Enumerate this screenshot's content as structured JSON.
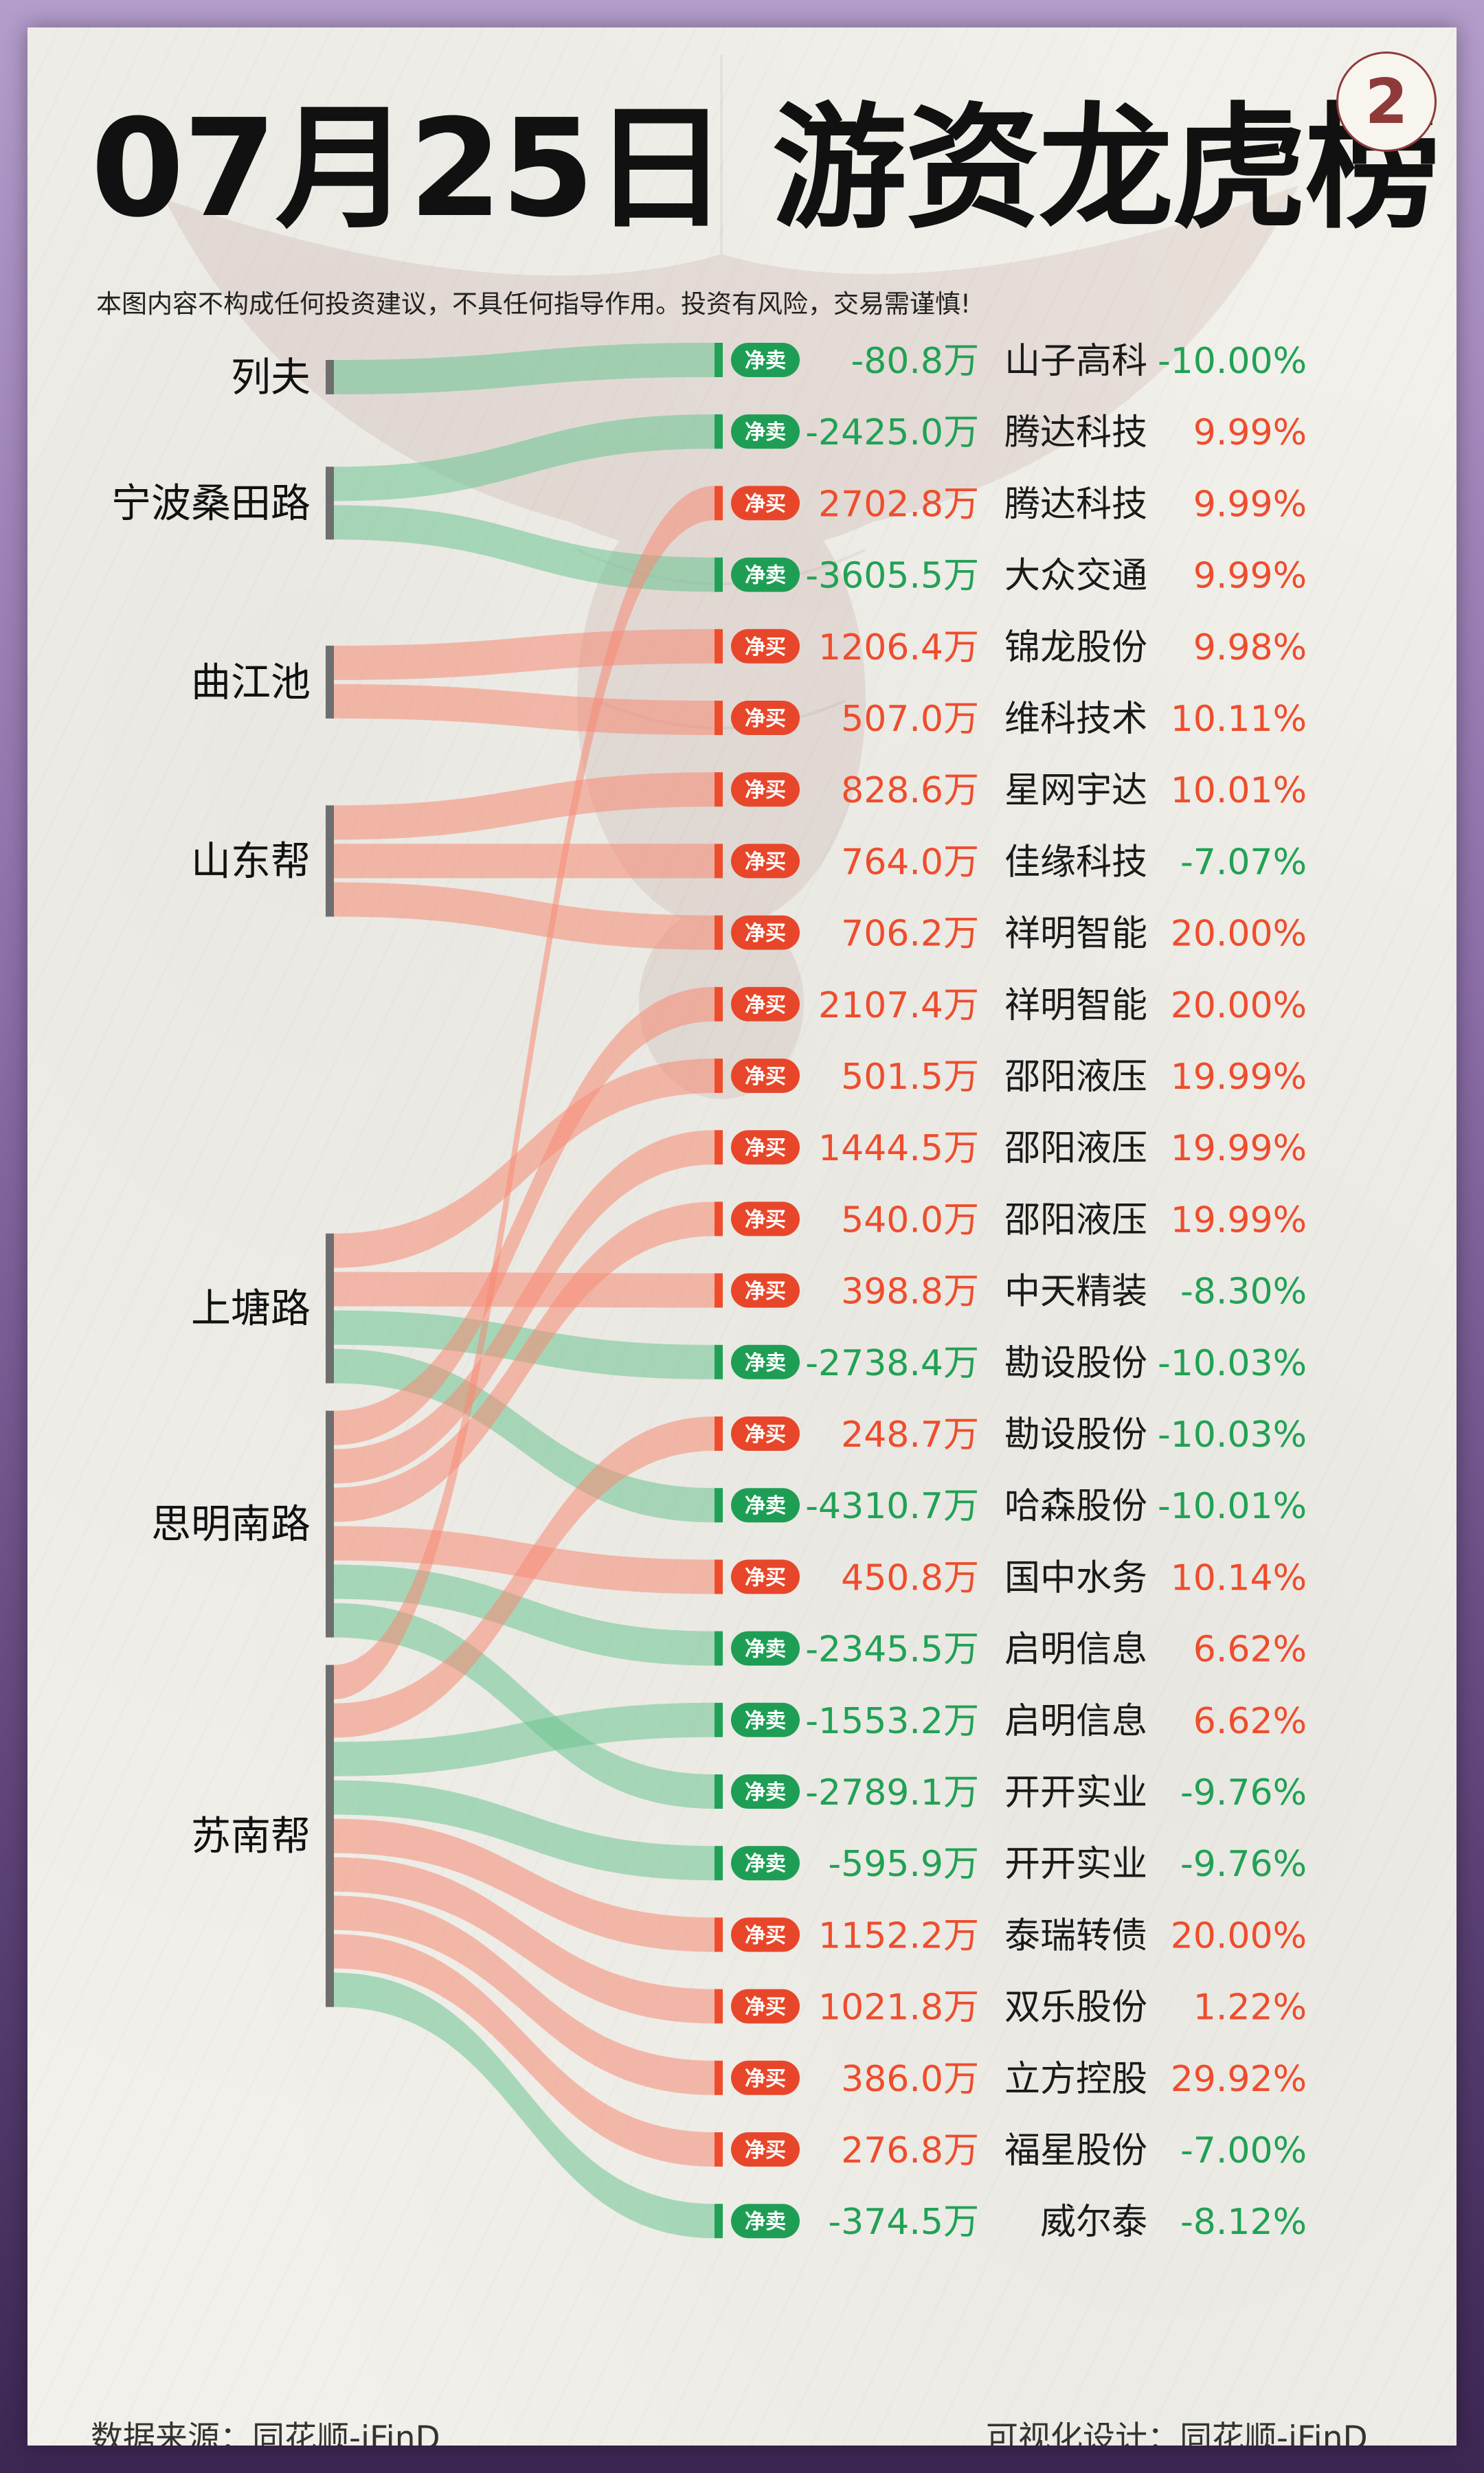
{
  "header": {
    "title": "07月25日 游资龙虎榜",
    "badge": "2",
    "disclaimer": "本图内容不构成任何投资建议，不具任何指导作用。投资有风险，交易需谨慎!"
  },
  "footer": {
    "source": "数据来源：同花顺-iFinD",
    "design": "可视化设计：同花顺-iFinD"
  },
  "colors": {
    "buy": "#ee4d2d",
    "sell": "#21a155",
    "buy_flow": "#f58a74",
    "sell_flow": "#6cc492",
    "label": "#111111"
  },
  "icons": {
    "buy_tag": "red-pill-badge",
    "sell_tag": "green-pill-badge"
  },
  "chart_data": {
    "type": "sankey",
    "unit": "万",
    "action_labels": {
      "buy": "净买",
      "sell": "净卖"
    },
    "sources": [
      "列夫",
      "宁波桑田路",
      "曲江池",
      "山东帮",
      "上塘路",
      "思明南路",
      "苏南帮"
    ],
    "flows": [
      {
        "source": "列夫",
        "action": "sell",
        "amount": "-80.8万",
        "value": -80.8,
        "stock": "山子高科",
        "change": "-10.00%"
      },
      {
        "source": "宁波桑田路",
        "action": "sell",
        "amount": "-2425.0万",
        "value": -2425.0,
        "stock": "腾达科技",
        "change": "9.99%"
      },
      {
        "source": "苏南帮",
        "action": "buy",
        "amount": "2702.8万",
        "value": 2702.8,
        "stock": "腾达科技",
        "change": "9.99%"
      },
      {
        "source": "宁波桑田路",
        "action": "sell",
        "amount": "-3605.5万",
        "value": -3605.5,
        "stock": "大众交通",
        "change": "9.99%"
      },
      {
        "source": "曲江池",
        "action": "buy",
        "amount": "1206.4万",
        "value": 1206.4,
        "stock": "锦龙股份",
        "change": "9.98%"
      },
      {
        "source": "曲江池",
        "action": "buy",
        "amount": "507.0万",
        "value": 507.0,
        "stock": "维科技术",
        "change": "10.11%"
      },
      {
        "source": "山东帮",
        "action": "buy",
        "amount": "828.6万",
        "value": 828.6,
        "stock": "星网宇达",
        "change": "10.01%"
      },
      {
        "source": "山东帮",
        "action": "buy",
        "amount": "764.0万",
        "value": 764.0,
        "stock": "佳缘科技",
        "change": "-7.07%"
      },
      {
        "source": "山东帮",
        "action": "buy",
        "amount": "706.2万",
        "value": 706.2,
        "stock": "祥明智能",
        "change": "20.00%"
      },
      {
        "source": "思明南路",
        "action": "buy",
        "amount": "2107.4万",
        "value": 2107.4,
        "stock": "祥明智能",
        "change": "20.00%"
      },
      {
        "source": "上塘路",
        "action": "buy",
        "amount": "501.5万",
        "value": 501.5,
        "stock": "邵阳液压",
        "change": "19.99%"
      },
      {
        "source": "思明南路",
        "action": "buy",
        "amount": "1444.5万",
        "value": 1444.5,
        "stock": "邵阳液压",
        "change": "19.99%"
      },
      {
        "source": "思明南路",
        "action": "buy",
        "amount": "540.0万",
        "value": 540.0,
        "stock": "邵阳液压",
        "change": "19.99%"
      },
      {
        "source": "上塘路",
        "action": "buy",
        "amount": "398.8万",
        "value": 398.8,
        "stock": "中天精装",
        "change": "-8.30%"
      },
      {
        "source": "上塘路",
        "action": "sell",
        "amount": "-2738.4万",
        "value": -2738.4,
        "stock": "勘设股份",
        "change": "-10.03%"
      },
      {
        "source": "苏南帮",
        "action": "buy",
        "amount": "248.7万",
        "value": 248.7,
        "stock": "勘设股份",
        "change": "-10.03%"
      },
      {
        "source": "上塘路",
        "action": "sell",
        "amount": "-4310.7万",
        "value": -4310.7,
        "stock": "哈森股份",
        "change": "-10.01%"
      },
      {
        "source": "思明南路",
        "action": "buy",
        "amount": "450.8万",
        "value": 450.8,
        "stock": "国中水务",
        "change": "10.14%"
      },
      {
        "source": "思明南路",
        "action": "sell",
        "amount": "-2345.5万",
        "value": -2345.5,
        "stock": "启明信息",
        "change": "6.62%"
      },
      {
        "source": "苏南帮",
        "action": "sell",
        "amount": "-1553.2万",
        "value": -1553.2,
        "stock": "启明信息",
        "change": "6.62%"
      },
      {
        "source": "思明南路",
        "action": "sell",
        "amount": "-2789.1万",
        "value": -2789.1,
        "stock": "开开实业",
        "change": "-9.76%"
      },
      {
        "source": "苏南帮",
        "action": "sell",
        "amount": "-595.9万",
        "value": -595.9,
        "stock": "开开实业",
        "change": "-9.76%"
      },
      {
        "source": "苏南帮",
        "action": "buy",
        "amount": "1152.2万",
        "value": 1152.2,
        "stock": "泰瑞转债",
        "change": "20.00%"
      },
      {
        "source": "苏南帮",
        "action": "buy",
        "amount": "1021.8万",
        "value": 1021.8,
        "stock": "双乐股份",
        "change": "1.22%"
      },
      {
        "source": "苏南帮",
        "action": "buy",
        "amount": "386.0万",
        "value": 386.0,
        "stock": "立方控股",
        "change": "29.92%"
      },
      {
        "source": "苏南帮",
        "action": "buy",
        "amount": "276.8万",
        "value": 276.8,
        "stock": "福星股份",
        "change": "-7.00%"
      },
      {
        "source": "苏南帮",
        "action": "sell",
        "amount": "-374.5万",
        "value": -374.5,
        "stock": "威尔泰",
        "change": "-8.12%"
      }
    ]
  }
}
